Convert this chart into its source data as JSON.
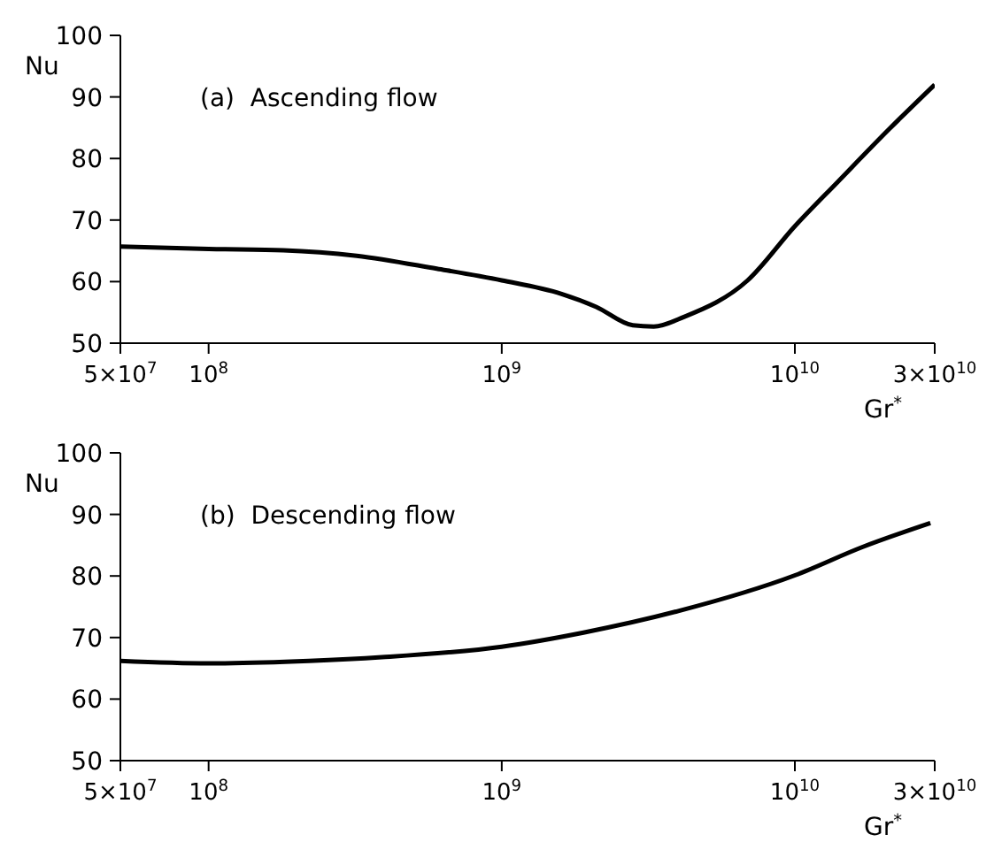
{
  "chart_data": [
    {
      "type": "line",
      "title": "(a)  Ascending flow",
      "xlabel": "Gr$^{*}$",
      "ylabel": "Nu",
      "log": "x",
      "marker": "none",
      "color": "#000000",
      "x": [
        50000000.0,
        100000000.0,
        180000000.0,
        320000000.0,
        600000000.0,
        1000000000.0,
        1600000000.0,
        2100000000.0,
        2800000000.0,
        3300000000.0,
        4200000000.0,
        6900000000.0,
        10000000000.0,
        14000000000.0,
        21000000000.0,
        30000000000.0
      ],
      "values": [
        65.7,
        65.3,
        65.1,
        64.2,
        62.1,
        60.2,
        58.0,
        55.9,
        52.9,
        52.7,
        54.3,
        60.2,
        69.0,
        76.2,
        84.8,
        92.0
      ],
      "xlim": [
        50000000.0,
        30000000000.0
      ],
      "ylim": [
        50,
        100
      ],
      "xticks": [
        {
          "value": 50000000.0,
          "label": "5×10$^{7}$"
        },
        {
          "value": 100000000.0,
          "label": "10$^{8}$"
        },
        {
          "value": 1000000000.0,
          "label": "10$^{9}$"
        },
        {
          "value": 10000000000.0,
          "label": "10$^{10}$"
        },
        {
          "value": 30000000000.0,
          "label": "3×10$^{10}$"
        }
      ],
      "yticks": [
        50,
        60,
        70,
        80,
        90,
        100
      ]
    },
    {
      "type": "line",
      "title": "(b)  Descending flow",
      "xlabel": "Gr$^{*}$",
      "ylabel": "Nu",
      "log": "x",
      "marker": "none",
      "color": "#000000",
      "x": [
        50000000.0,
        100000000.0,
        220000000.0,
        390000000.0,
        1000000000.0,
        1900000000.0,
        4000000000.0,
        10000000000.0,
        17000000000.0,
        29000000000.0
      ],
      "values": [
        66.2,
        65.8,
        66.2,
        66.8,
        68.5,
        70.8,
        74.3,
        80.1,
        84.7,
        88.6
      ],
      "xlim": [
        50000000.0,
        30000000000.0
      ],
      "ylim": [
        50,
        100
      ],
      "xticks": [
        {
          "value": 50000000.0,
          "label": "5×10$^{7}$"
        },
        {
          "value": 100000000.0,
          "label": "10$^{8}$"
        },
        {
          "value": 1000000000.0,
          "label": "10$^{9}$"
        },
        {
          "value": 10000000000.0,
          "label": "10$^{10}$"
        },
        {
          "value": 30000000000.0,
          "label": "3×10$^{10}$"
        }
      ],
      "yticks": [
        50,
        60,
        70,
        80,
        90,
        100
      ]
    }
  ]
}
